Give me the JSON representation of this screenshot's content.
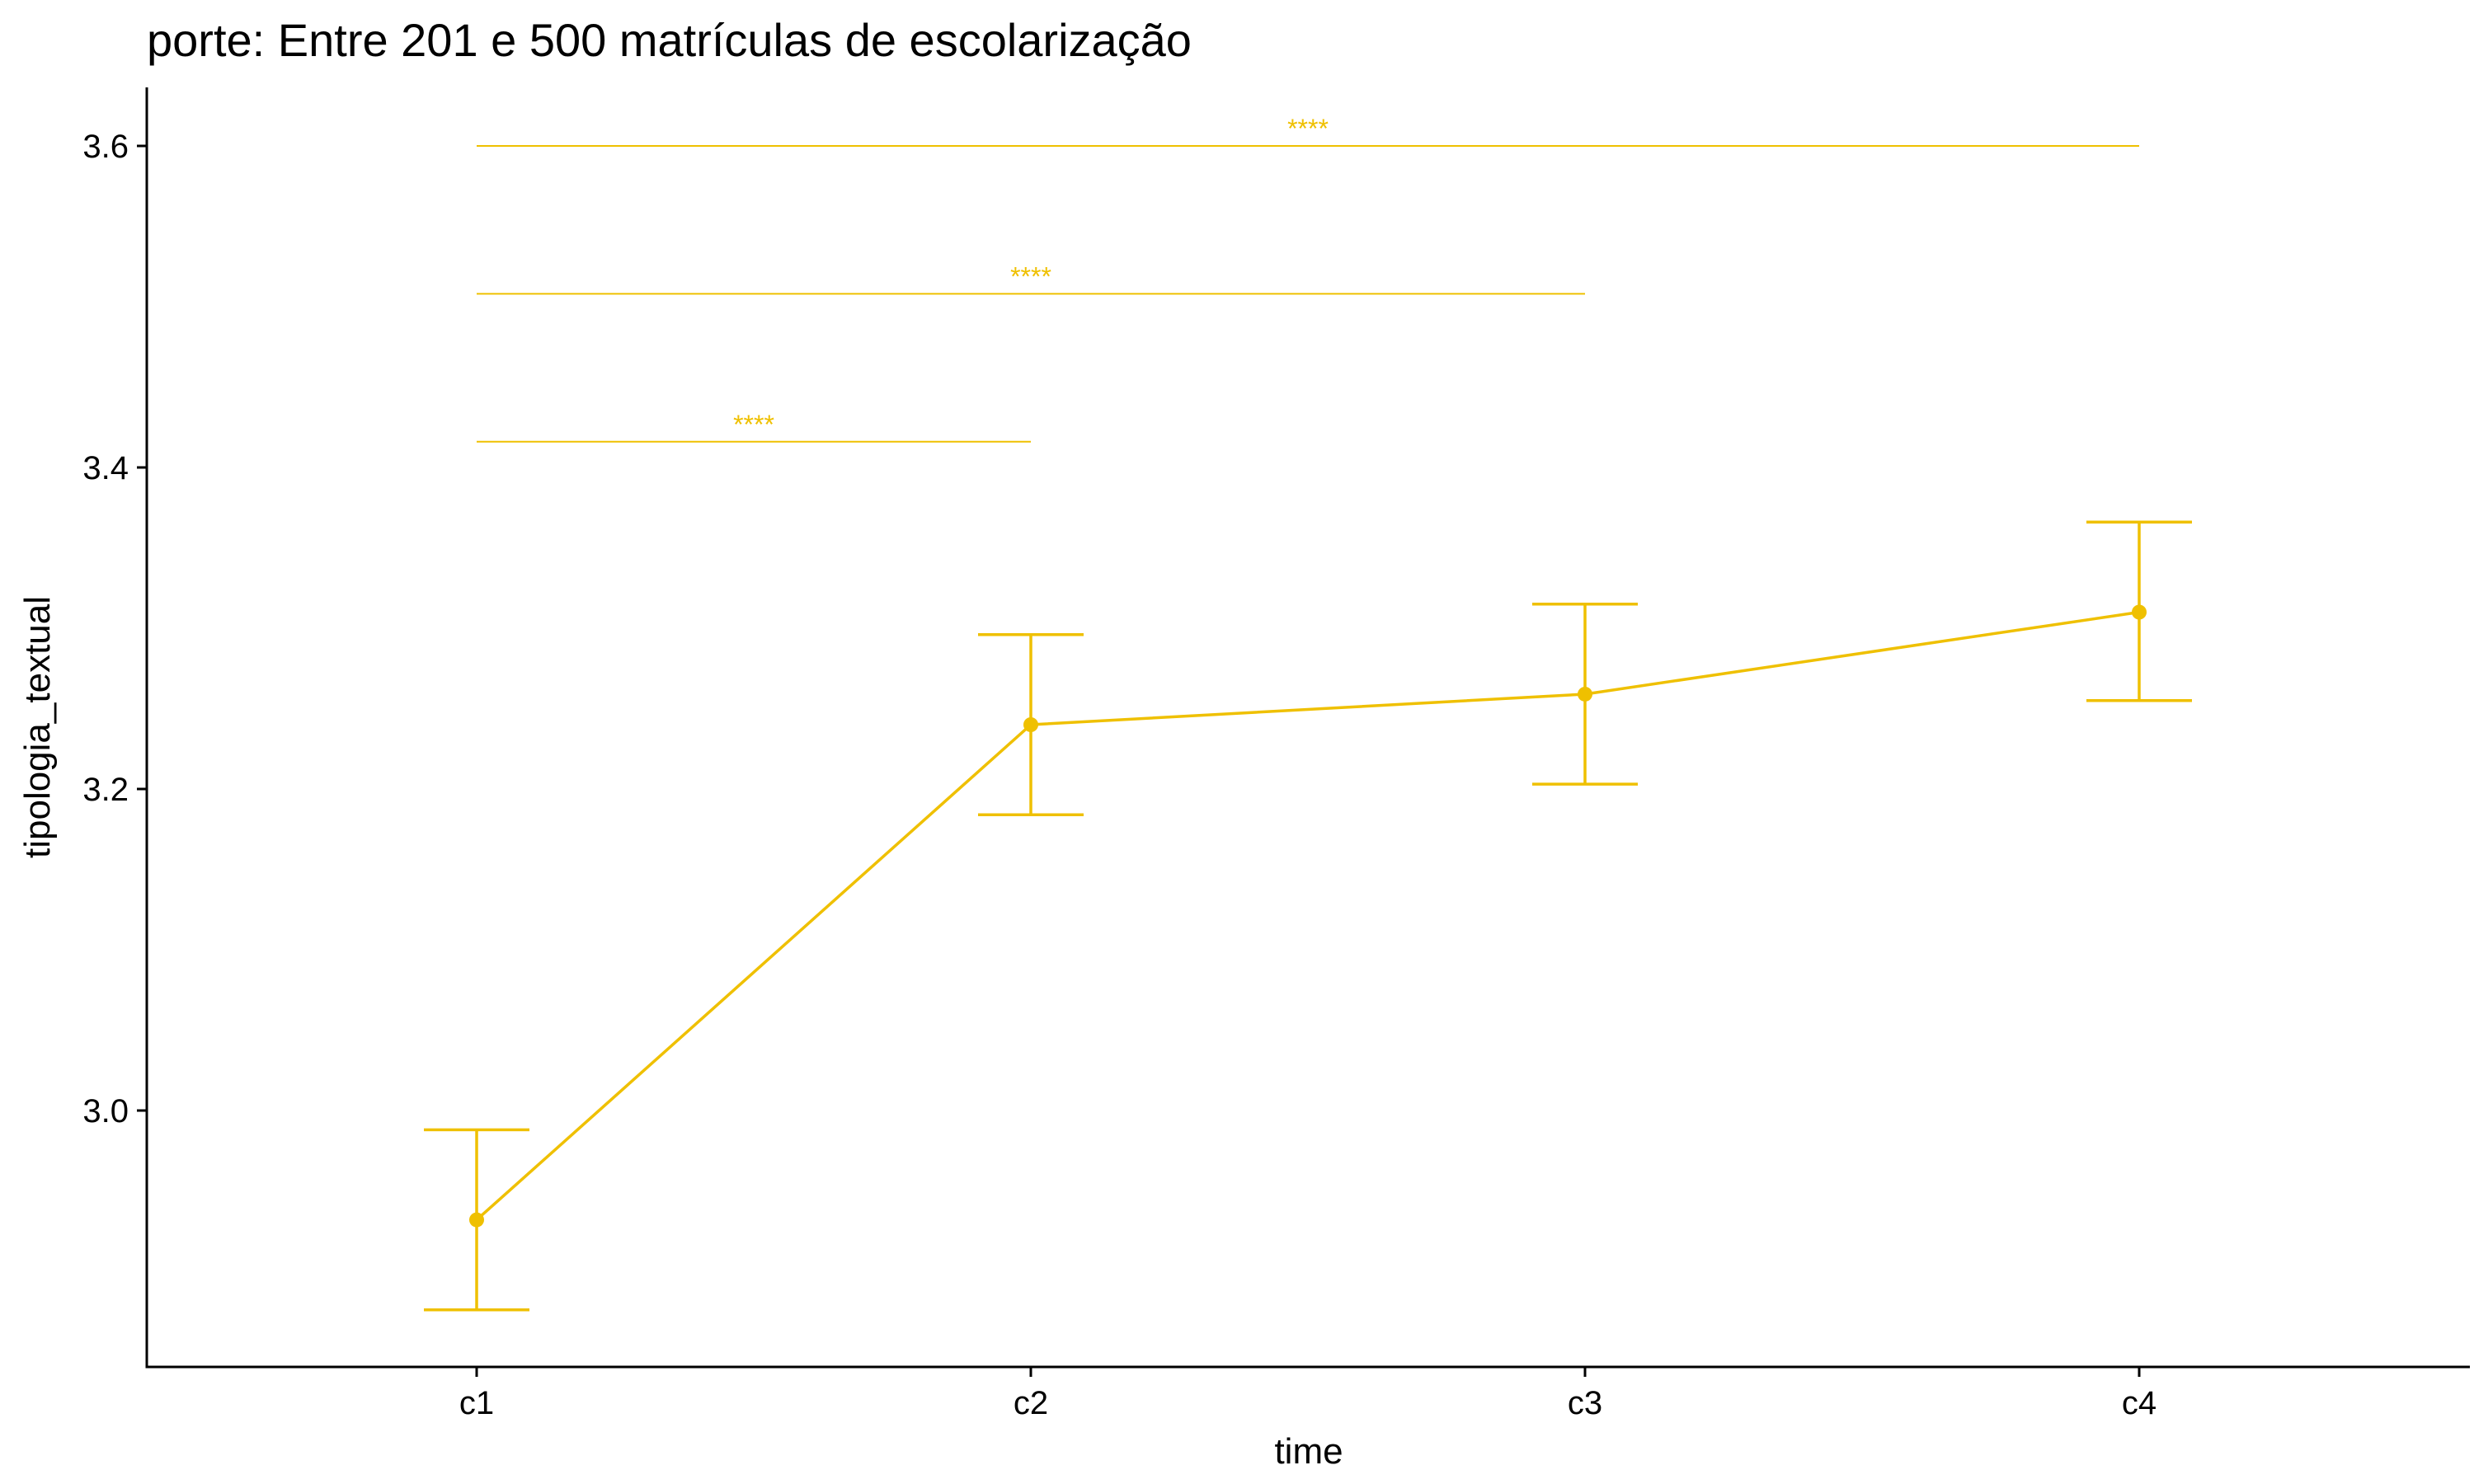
{
  "chart_data": {
    "type": "line",
    "title": "porte: Entre 201 e 500 matrículas de escolarização",
    "xlabel": "time",
    "ylabel": "tipologia_textual",
    "categories": [
      "c1",
      "c2",
      "c3",
      "c4"
    ],
    "series": [
      {
        "values": [
          2.932,
          3.24,
          3.259,
          3.31
        ],
        "lower": [
          2.876,
          3.184,
          3.203,
          3.255
        ],
        "upper": [
          2.988,
          3.296,
          3.315,
          3.366
        ]
      }
    ],
    "yticks": [
      3.0,
      3.2,
      3.4,
      3.6
    ],
    "ytick_labels": [
      "3.0",
      "3.2",
      "3.4",
      "3.6"
    ],
    "ylim": [
      2.84,
      3.635
    ],
    "grid": false,
    "legend": "none",
    "color": "#EFC000",
    "significance": [
      {
        "from": "c1",
        "to": "c2",
        "y": 3.416,
        "label": "****"
      },
      {
        "from": "c1",
        "to": "c3",
        "y": 3.508,
        "label": "****"
      },
      {
        "from": "c1",
        "to": "c4",
        "y": 3.6,
        "label": "****"
      }
    ]
  }
}
